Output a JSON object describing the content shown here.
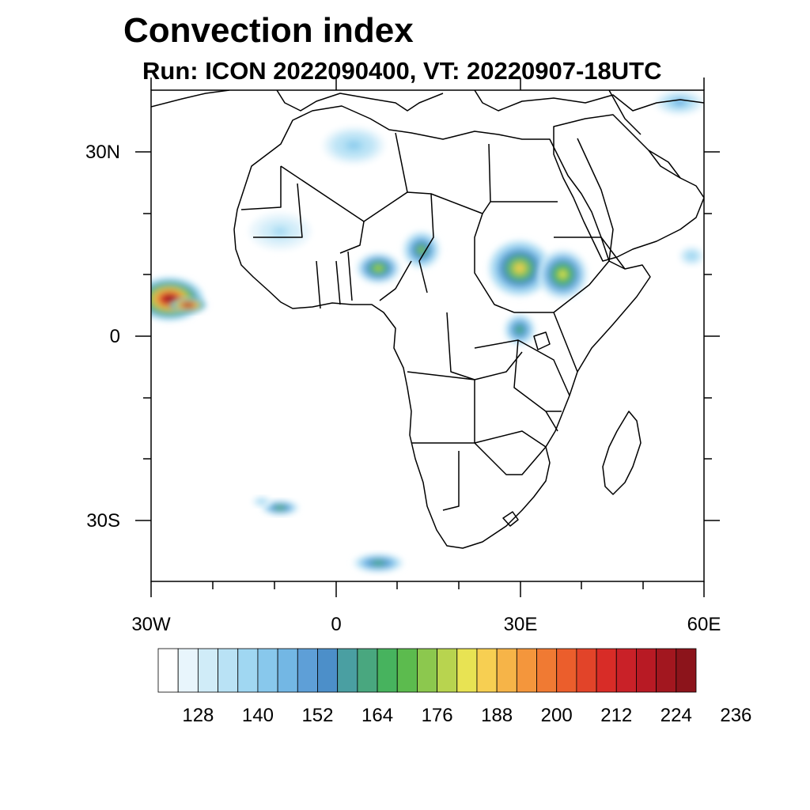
{
  "title": "Convection index",
  "subtitle": "Run: ICON 2022090400,  VT: 20220907-18UTC",
  "map": {
    "lon_range": [
      -30,
      60
    ],
    "lat_range": [
      -40,
      40
    ],
    "lat_labels": [
      "30N",
      "0",
      "30S"
    ],
    "lon_labels": [
      "30W",
      "0",
      "30E",
      "60E"
    ]
  },
  "colorbar": {
    "colors": [
      "#ffffff",
      "#e8f5fc",
      "#d0ecf8",
      "#b9e2f5",
      "#a0d7f2",
      "#88c8ec",
      "#73b7e4",
      "#5e9fd7",
      "#4c8fc9",
      "#4a9fa2",
      "#49a77f",
      "#47b35e",
      "#5cbb4e",
      "#8cc84e",
      "#b8d44f",
      "#e8e353",
      "#f7cf52",
      "#f6b448",
      "#f4963c",
      "#f07a33",
      "#eb5e2c",
      "#e24429",
      "#d82c27",
      "#c92128",
      "#b81a24",
      "#a2171f",
      "#8c141b"
    ],
    "tick_labels": [
      "128",
      "140",
      "152",
      "164",
      "176",
      "188",
      "200",
      "212",
      "224",
      "236"
    ]
  },
  "convection_cells": [
    {
      "lon": -27,
      "lat": 6,
      "rx_deg": 5.5,
      "ry_deg": 3.5,
      "peak": 224
    },
    {
      "lon": -24,
      "lat": 5,
      "rx_deg": 3,
      "ry_deg": 1.2,
      "peak": 236
    },
    {
      "lon": 7,
      "lat": 11,
      "rx_deg": 3.5,
      "ry_deg": 2.5,
      "peak": 176
    },
    {
      "lon": 14,
      "lat": 14,
      "rx_deg": 3,
      "ry_deg": 3,
      "peak": 170
    },
    {
      "lon": 30,
      "lat": 11,
      "rx_deg": 5,
      "ry_deg": 4.5,
      "peak": 182
    },
    {
      "lon": 37,
      "lat": 10,
      "rx_deg": 4,
      "ry_deg": 4,
      "peak": 178
    },
    {
      "lon": 30,
      "lat": 1,
      "rx_deg": 2.5,
      "ry_deg": 2.5,
      "peak": 164
    },
    {
      "lon": 3,
      "lat": 31,
      "rx_deg": 5,
      "ry_deg": 3,
      "peak": 140
    },
    {
      "lon": 56,
      "lat": 38,
      "rx_deg": 4,
      "ry_deg": 2,
      "peak": 146
    },
    {
      "lon": -9,
      "lat": 17,
      "rx_deg": 5,
      "ry_deg": 3,
      "peak": 134
    },
    {
      "lon": -9,
      "lat": -28,
      "rx_deg": 3,
      "ry_deg": 1.2,
      "peak": 168
    },
    {
      "lon": -12,
      "lat": -27,
      "rx_deg": 1.5,
      "ry_deg": 0.8,
      "peak": 140
    },
    {
      "lon": 7,
      "lat": -37,
      "rx_deg": 4,
      "ry_deg": 1.5,
      "peak": 164
    },
    {
      "lon": 58,
      "lat": 13,
      "rx_deg": 2,
      "ry_deg": 1.5,
      "peak": 140
    }
  ]
}
